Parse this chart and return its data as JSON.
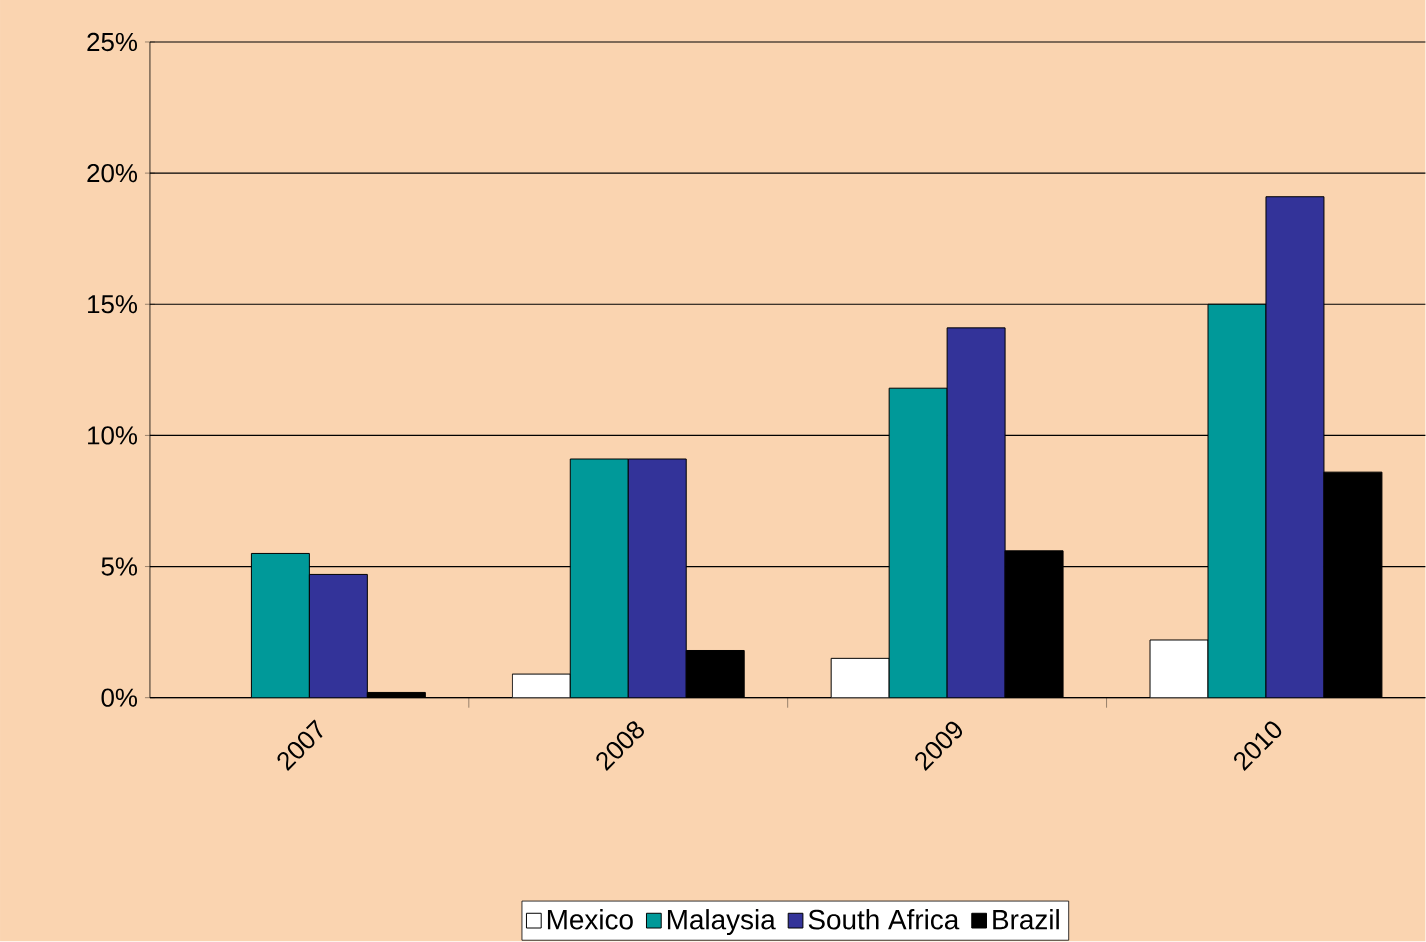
{
  "chart_data": {
    "type": "bar",
    "categories": [
      "2007",
      "2008",
      "2009",
      "2010"
    ],
    "series": [
      {
        "name": "Mexico",
        "color": "#ffffff",
        "values": [
          null,
          0.9,
          1.5,
          2.2
        ]
      },
      {
        "name": "Malaysia",
        "color": "#009999",
        "values": [
          5.5,
          9.1,
          11.8,
          15.0
        ]
      },
      {
        "name": "South Africa",
        "color": "#333399",
        "values": [
          4.7,
          9.1,
          14.1,
          19.1
        ]
      },
      {
        "name": "Brazil",
        "color": "#000000",
        "values": [
          0.2,
          1.8,
          5.6,
          8.6
        ]
      }
    ],
    "ylim": [
      0,
      25
    ],
    "yticks": [
      {
        "value": 0,
        "label": "0%"
      },
      {
        "value": 5,
        "label": "5%"
      },
      {
        "value": 10,
        "label": "10%"
      },
      {
        "value": 15,
        "label": "15%"
      },
      {
        "value": 20,
        "label": "20%"
      },
      {
        "value": 25,
        "label": "25%"
      }
    ],
    "grid": "y",
    "legend": "bottom"
  }
}
